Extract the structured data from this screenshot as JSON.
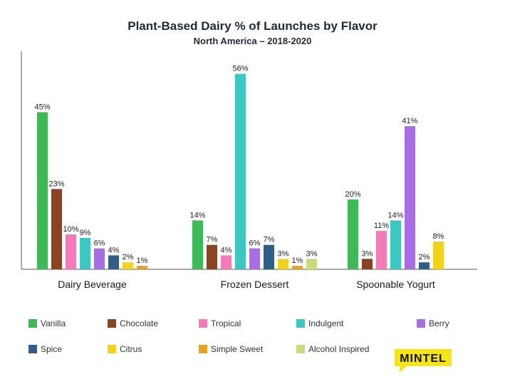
{
  "chart_data": {
    "type": "bar",
    "title": "Plant-Based Dairy % of Launches by Flavor",
    "subtitle": "North America – 2018-2020",
    "categories": [
      "Dairy Beverage",
      "Frozen Dessert",
      "Spoonable Yogurt"
    ],
    "series": [
      {
        "name": "Vanilla",
        "color": "#3dba57",
        "values": [
          45,
          14,
          20
        ]
      },
      {
        "name": "Chocolate",
        "color": "#8b4423",
        "values": [
          23,
          7,
          3
        ]
      },
      {
        "name": "Tropical",
        "color": "#f27bb8",
        "values": [
          10,
          4,
          11
        ]
      },
      {
        "name": "Indulgent",
        "color": "#3dc7c2",
        "values": [
          9,
          56,
          14
        ]
      },
      {
        "name": "Berry",
        "color": "#a66ee0",
        "values": [
          6,
          6,
          41
        ]
      },
      {
        "name": "Spice",
        "color": "#2f5f86",
        "values": [
          4,
          7,
          2
        ]
      },
      {
        "name": "Citrus",
        "color": "#f2d21b",
        "values": [
          2,
          3,
          8
        ]
      },
      {
        "name": "Simple Sweet",
        "color": "#e8a31c",
        "values": [
          1,
          1,
          null
        ]
      },
      {
        "name": "Alcohol Inspired",
        "color": "#c6dd7a",
        "values": [
          null,
          3,
          null
        ]
      }
    ],
    "value_suffix": "%",
    "xlabel": "",
    "ylabel": "",
    "ylim": [
      0,
      60
    ],
    "grid": false,
    "legend_position": "bottom"
  },
  "brand": {
    "logo_text": "MINTEL",
    "logo_color": "#f5e41a"
  }
}
